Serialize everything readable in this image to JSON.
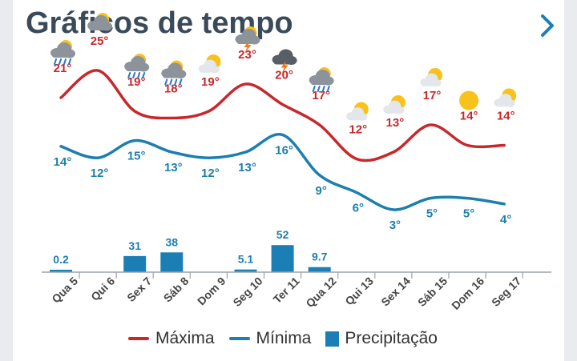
{
  "header": {
    "title": "Gráficos de tempo",
    "next_icon": "chevron-right-icon"
  },
  "colors": {
    "max": "#c8282c",
    "min": "#1d7fae",
    "precip": "#1b7fb5",
    "title": "#3a4a59",
    "axis": "#9aa3ad",
    "day_label": "#444444"
  },
  "chart_data": {
    "type": "line",
    "categories": [
      "Qua 5",
      "Qui 6",
      "Sex 7",
      "Sáb 8",
      "Dom 9",
      "Seg 10",
      "Ter 11",
      "Qua 12",
      "Qui 13",
      "Sex 14",
      "Sáb 15",
      "Dom 16",
      "Seg 17"
    ],
    "weather_icons": [
      "rain-icon",
      "cloudy-icon",
      "rain-icon",
      "rain-icon",
      "partly-cloudy-icon",
      "thunderstorm-icon",
      "thunderstorm-icon",
      "rain-icon",
      "partly-cloudy-icon",
      "partly-cloudy-icon",
      "partly-cloudy-icon",
      "sunny-icon",
      "partly-cloudy-icon"
    ],
    "series": [
      {
        "name": "Máxima",
        "values": [
          21,
          25,
          19,
          18,
          19,
          23,
          20,
          17,
          12,
          13,
          17,
          14,
          14
        ],
        "labels": [
          "21°",
          "25°",
          "19°",
          "18°",
          "19°",
          "23°",
          "20°",
          "17°",
          "12°",
          "13°",
          "17°",
          "14°",
          "14°"
        ]
      },
      {
        "name": "Mínima",
        "values": [
          14,
          12,
          15,
          13,
          12,
          13,
          16,
          9,
          6,
          3,
          5,
          5,
          4
        ],
        "labels": [
          "14°",
          "12°",
          "15°",
          "13°",
          "12°",
          "13°",
          "16°",
          "9°",
          "6°",
          "3°",
          "5°",
          "5°",
          "4°"
        ]
      },
      {
        "name": "Precipitação",
        "values": [
          0.2,
          0,
          31,
          38,
          0,
          5.1,
          52,
          9.7,
          0,
          0,
          0,
          0,
          0
        ],
        "labels": [
          "0.2",
          "",
          "31",
          "38",
          "",
          "5.1",
          "52",
          "9.7",
          "",
          "",
          "",
          "",
          ""
        ]
      }
    ],
    "legend_position": "bottom"
  }
}
